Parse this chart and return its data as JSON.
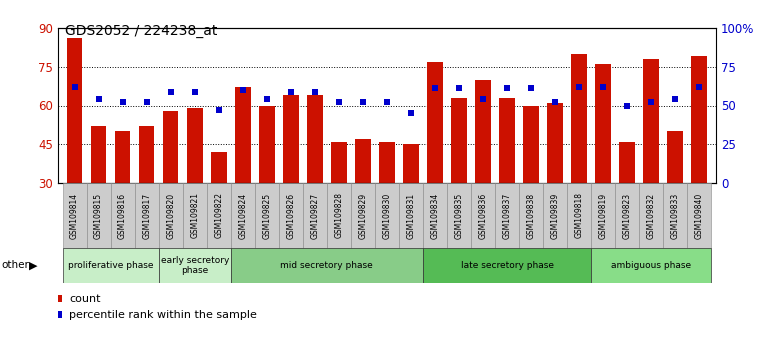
{
  "title": "GDS2052 / 224238_at",
  "samples": [
    "GSM109814",
    "GSM109815",
    "GSM109816",
    "GSM109817",
    "GSM109820",
    "GSM109821",
    "GSM109822",
    "GSM109824",
    "GSM109825",
    "GSM109826",
    "GSM109827",
    "GSM109828",
    "GSM109829",
    "GSM109830",
    "GSM109831",
    "GSM109834",
    "GSM109835",
    "GSM109836",
    "GSM109837",
    "GSM109838",
    "GSM109839",
    "GSM109818",
    "GSM109819",
    "GSM109823",
    "GSM109832",
    "GSM109833",
    "GSM109840"
  ],
  "count": [
    86,
    52,
    50,
    52,
    58,
    59,
    42,
    67,
    60,
    64,
    64,
    46,
    47,
    46,
    45,
    77,
    63,
    70,
    63,
    60,
    61,
    80,
    76,
    46,
    78,
    50,
    79
  ],
  "percentile": [
    62,
    54,
    52,
    52,
    59,
    59,
    47,
    60,
    54,
    59,
    59,
    52,
    52,
    52,
    45,
    61,
    61,
    54,
    61,
    61,
    52,
    62,
    62,
    50,
    52,
    54,
    62
  ],
  "phases": [
    {
      "label": "proliferative phase",
      "start": 0,
      "end": 4,
      "color": "#c8eec8"
    },
    {
      "label": "early secretory\nphase",
      "start": 4,
      "end": 7,
      "color": "#c8eec8"
    },
    {
      "label": "mid secretory phase",
      "start": 7,
      "end": 15,
      "color": "#88cc88"
    },
    {
      "label": "late secretory phase",
      "start": 15,
      "end": 22,
      "color": "#55bb55"
    },
    {
      "label": "ambiguous phase",
      "start": 22,
      "end": 27,
      "color": "#88dd88"
    }
  ],
  "bar_color": "#cc1100",
  "dot_color": "#0000cc",
  "ylim_left": [
    30,
    90
  ],
  "ylim_right": [
    0,
    100
  ],
  "yticks_left": [
    30,
    45,
    60,
    75,
    90
  ],
  "yticks_right": [
    0,
    25,
    50,
    75,
    100
  ]
}
